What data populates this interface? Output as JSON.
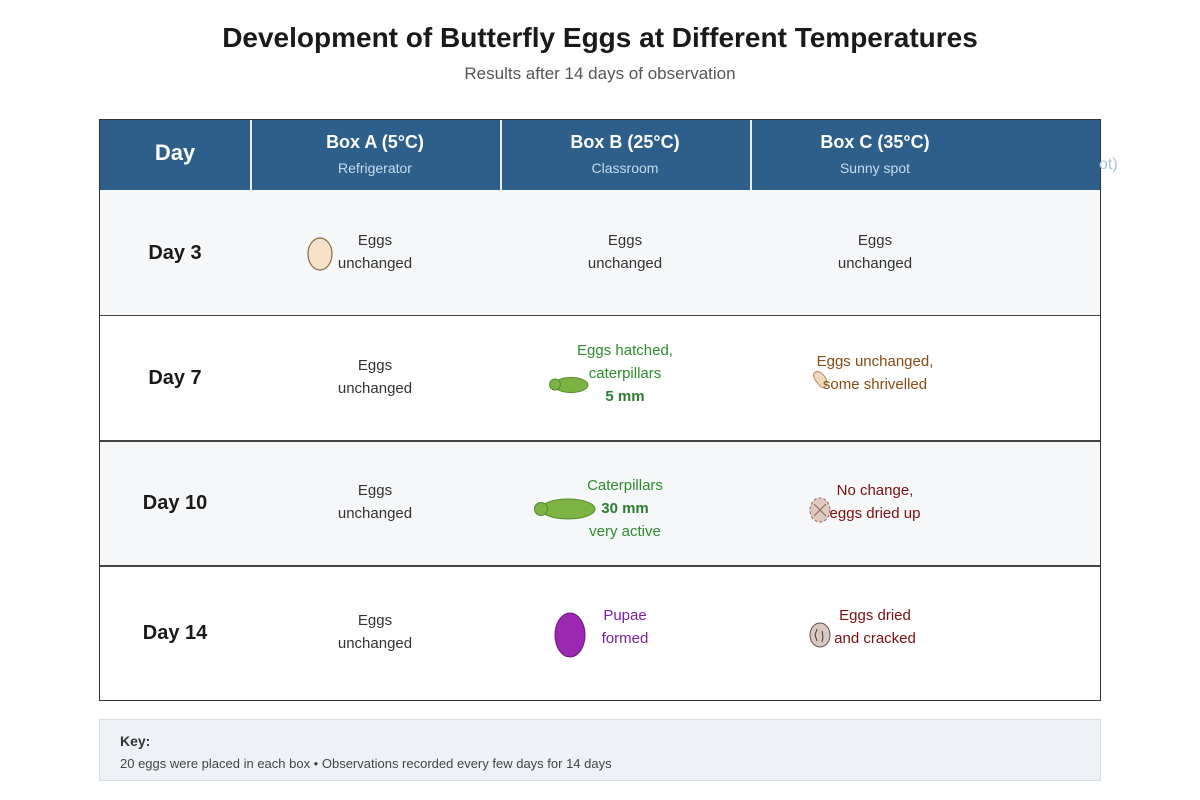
{
  "title": "Development of Butterfly Eggs at Different Temperatures",
  "subtitle": "Results after 14 days of observation",
  "header": {
    "day_label": "Day",
    "boxes": [
      {
        "title": "Box A (5°C)",
        "subtitle": "Refrigerator"
      },
      {
        "title": "Box B (25°C)",
        "subtitle": "Classroom"
      },
      {
        "title": "Box C (35°C)",
        "subtitle": "Sunny spot"
      }
    ],
    "overflow_fragment": "ot)"
  },
  "rows": [
    {
      "day": "Day 3",
      "a": {
        "l1": "Eggs",
        "l2": "unchanged"
      },
      "b": {
        "l1": "Eggs",
        "l2": "unchanged"
      },
      "c": {
        "l1": "Eggs",
        "l2": "unchanged"
      }
    },
    {
      "day": "Day 7",
      "a": {
        "l1": "Eggs",
        "l2": "unchanged"
      },
      "b": {
        "l1": "Eggs hatched,",
        "l2": "caterpillars",
        "l3": "5 mm"
      },
      "c": {
        "l1": "Eggs unchanged,",
        "l2": "some shrivelled"
      }
    },
    {
      "day": "Day 10",
      "a": {
        "l1": "Eggs",
        "l2": "unchanged"
      },
      "b": {
        "l1": "Caterpillars",
        "l2": "30 mm",
        "l3": "very active"
      },
      "c": {
        "l1": "No change,",
        "l2": "eggs dried up"
      }
    },
    {
      "day": "Day 14",
      "a": {
        "l1": "Eggs",
        "l2": "unchanged"
      },
      "b": {
        "l1": "Pupae",
        "l2": "formed"
      },
      "c": {
        "l1": "Eggs dried",
        "l2": "and cracked"
      }
    }
  ],
  "icons": {
    "egg": "egg-icon",
    "caterpillar": "caterpillar-icon",
    "shrivelled_egg": "shrivelled-egg-icon",
    "dried_egg": "dried-egg-icon",
    "pupa": "pupa-icon",
    "cracked_egg": "cracked-egg-icon"
  },
  "colors": {
    "header_bg": "#2d5f8a",
    "green_text": "#2e8b2e",
    "brown_text": "#8a4b12",
    "maroon_text": "#7a1010",
    "purple_text": "#7b1fa2",
    "caterpillar": "#7cb342",
    "pupa": "#9c27b0"
  },
  "key": {
    "title": "Key:",
    "description": "20 eggs were placed in each box • Observations recorded every few days for 14 days"
  }
}
